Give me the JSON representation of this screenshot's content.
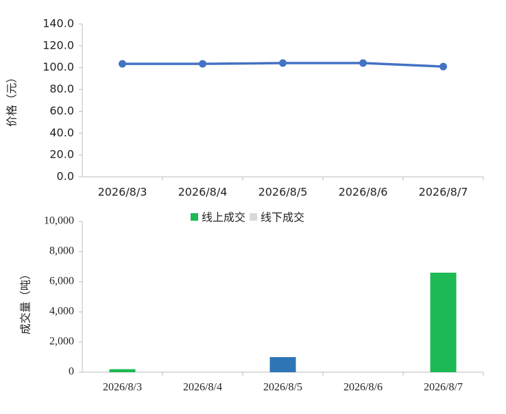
{
  "chart_data": [
    {
      "type": "line",
      "y_label": "价格（元）",
      "categories": [
        "2026/8/3",
        "2026/8/4",
        "2026/8/5",
        "2026/8/6",
        "2026/8/7"
      ],
      "values": [
        103.5,
        103.5,
        104.2,
        104.2,
        101.0
      ],
      "color": "#4472c4",
      "ylim": [
        0,
        140
      ],
      "yticks": [
        {
          "value": 0,
          "label": "0.0"
        },
        {
          "value": 20,
          "label": "20.0"
        },
        {
          "value": 40,
          "label": "40.0"
        },
        {
          "value": 60,
          "label": "60.0"
        },
        {
          "value": 80,
          "label": "80.0"
        },
        {
          "value": 100,
          "label": "100.0"
        },
        {
          "value": 120,
          "label": "120.0"
        },
        {
          "value": 140,
          "label": "140.0"
        }
      ],
      "grid": false
    },
    {
      "type": "bar",
      "y_label": "成交量（吨）",
      "categories": [
        "2026/8/3",
        "2026/8/4",
        "2026/8/5",
        "2026/8/6",
        "2026/8/7"
      ],
      "series": [
        {
          "name": "线上成交",
          "color": "#1db954",
          "colors": [
            "#1db954",
            "#1db954",
            "#2e75b6",
            "#1db954",
            "#1db954"
          ],
          "values": [
            200,
            0,
            1000,
            0,
            6600
          ]
        },
        {
          "name": "线下成交",
          "color": "#d9d9d9",
          "values": [
            0,
            0,
            0,
            0,
            0
          ]
        }
      ],
      "ylim": [
        0,
        10000
      ],
      "yticks": [
        0,
        {
          "value": 2000,
          "label": "2,000"
        },
        {
          "value": 4000,
          "label": "4,000"
        },
        {
          "value": 6000,
          "label": "6,000"
        },
        {
          "value": 8000,
          "label": "8,000"
        },
        {
          "value": 10000,
          "label": "10,000"
        }
      ],
      "legend": "top",
      "grid": false
    }
  ]
}
